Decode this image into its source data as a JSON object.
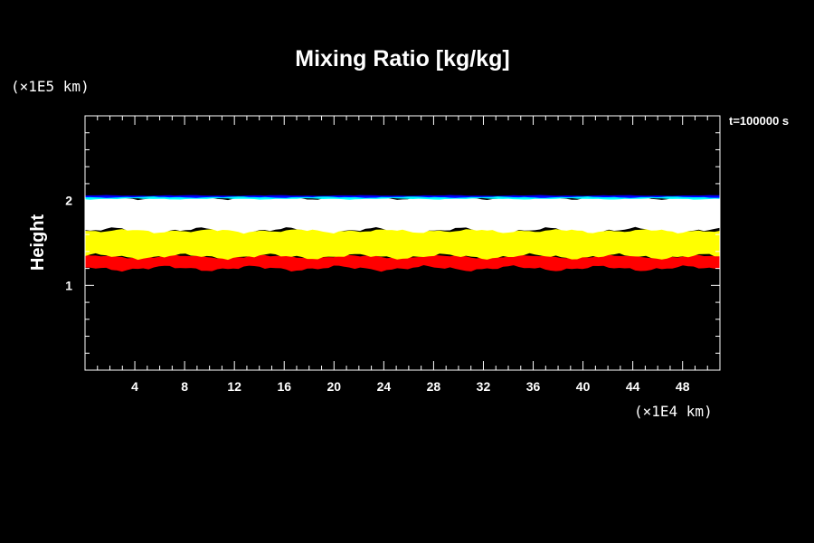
{
  "chart_data": {
    "type": "heatmap",
    "title": "Mixing Ratio [kg/kg]",
    "ylabel": "Height",
    "x_unit_label": "(×1E4 km)",
    "y_unit_label": "(×1E5 km)",
    "time_label": "t=100000 s",
    "xlim": [
      0,
      51
    ],
    "ylim": [
      0,
      3
    ],
    "x_ticks": [
      4,
      8,
      12,
      16,
      20,
      24,
      28,
      32,
      36,
      40,
      44,
      48
    ],
    "y_ticks": [
      1,
      2
    ],
    "x_minor_step": 1,
    "y_minor_step": 0.2,
    "background_color": "#000000",
    "bands": [
      {
        "color": "#ff0000",
        "base_y": 1.2,
        "top_y": 1.34
      },
      {
        "color": "#ffff00",
        "base_y": 1.34,
        "top_y": 1.65
      },
      {
        "color": "#ffffff",
        "base_y": 1.65,
        "top_y": 2.03
      },
      {
        "color": "#00ffff",
        "base_y": 2.02,
        "top_y": 2.05
      },
      {
        "color": "#0000ff",
        "base_y": 2.04,
        "top_y": 2.06
      }
    ]
  }
}
